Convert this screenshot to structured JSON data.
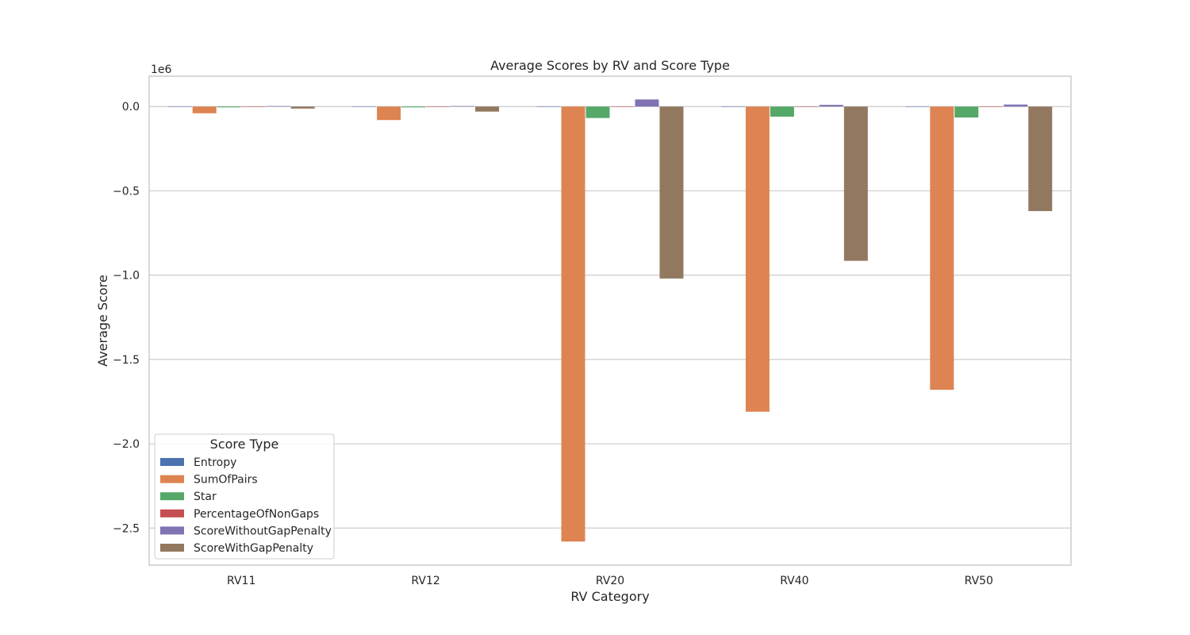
{
  "chart_data": {
    "type": "bar",
    "title": "Average Scores by RV and Score Type",
    "xlabel": "RV Category",
    "ylabel": "Average Score",
    "y_offset_label": "1e6",
    "y_scale": 1000000,
    "ylim": [
      -2.72,
      0.18
    ],
    "yticks": [
      0.0,
      -0.5,
      -1.0,
      -1.5,
      -2.0,
      -2.5
    ],
    "ytick_labels": [
      "0.0",
      "−0.5",
      "−1.0",
      "−1.5",
      "−2.0",
      "−2.5"
    ],
    "grid": true,
    "legend_title": "Score Type",
    "legend_position": "lower-left",
    "categories": [
      "RV11",
      "RV12",
      "RV20",
      "RV40",
      "RV50"
    ],
    "series": [
      {
        "name": "Entropy",
        "color": "#4c72b0",
        "values": [
          1000,
          1000,
          1000,
          1000,
          1000
        ]
      },
      {
        "name": "SumOfPairs",
        "color": "#dd8452",
        "values": [
          -40000,
          -80000,
          -2580000,
          -1810000,
          -1680000
        ]
      },
      {
        "name": "Star",
        "color": "#55a868",
        "values": [
          -5000,
          -5000,
          -68000,
          -60000,
          -65000
        ]
      },
      {
        "name": "PercentageOfNonGaps",
        "color": "#c44e52",
        "values": [
          100,
          100,
          100,
          100,
          100
        ]
      },
      {
        "name": "ScoreWithoutGapPenalty",
        "color": "#8172b3",
        "values": [
          3000,
          3000,
          42000,
          10000,
          12000
        ]
      },
      {
        "name": "ScoreWithGapPenalty",
        "color": "#937860",
        "values": [
          -12000,
          -30000,
          -1020000,
          -915000,
          -620000
        ]
      }
    ]
  }
}
